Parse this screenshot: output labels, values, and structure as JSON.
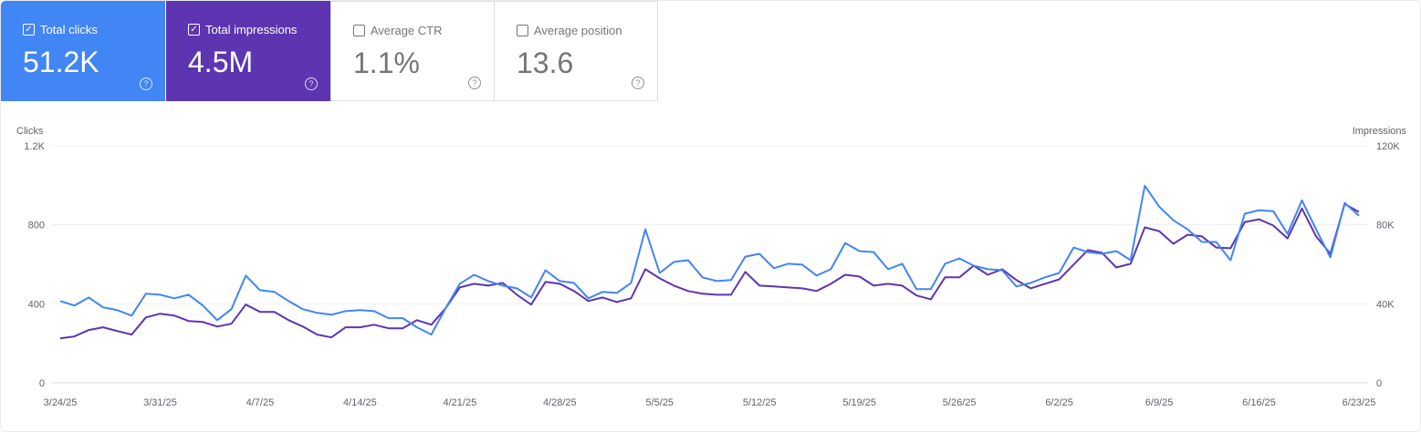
{
  "cards": [
    {
      "label": "Total clicks",
      "value": "51.2K",
      "checked": true,
      "color": "#4285f4"
    },
    {
      "label": "Total impressions",
      "value": "4.5M",
      "checked": true,
      "color": "#5e35b1"
    },
    {
      "label": "Average CTR",
      "value": "1.1%",
      "checked": false
    },
    {
      "label": "Average position",
      "value": "13.6",
      "checked": false
    }
  ],
  "chart_data": {
    "type": "line",
    "start_date": "2025-03-24",
    "end_date": "2025-06-23",
    "x_tick_labels": [
      "3/24/25",
      "3/31/25",
      "4/7/25",
      "4/14/25",
      "4/21/25",
      "4/28/25",
      "5/5/25",
      "5/12/25",
      "5/19/25",
      "5/26/25",
      "6/2/25",
      "6/9/25",
      "6/16/25",
      "6/23/25"
    ],
    "y_left": {
      "label": "Clicks",
      "ticks": [
        "0",
        "400",
        "800",
        "1.2K"
      ],
      "range": [
        0,
        1200
      ]
    },
    "y_right": {
      "label": "Impressions",
      "ticks": [
        "0",
        "40K",
        "80K",
        "120K"
      ],
      "range": [
        0,
        120000
      ]
    },
    "grid": true,
    "series": [
      {
        "name": "Clicks",
        "axis": "left",
        "color": "#4285f4",
        "values": [
          414,
          391,
          432,
          382,
          368,
          340,
          451,
          446,
          428,
          446,
          391,
          317,
          373,
          543,
          469,
          460,
          414,
          373,
          354,
          345,
          363,
          368,
          363,
          327,
          327,
          281,
          244,
          377,
          501,
          547,
          515,
          492,
          478,
          432,
          570,
          515,
          506,
          428,
          460,
          455,
          506,
          777,
          556,
          612,
          621,
          534,
          515,
          520,
          639,
          653,
          580,
          603,
          598,
          543,
          575,
          708,
          667,
          662,
          575,
          603,
          474,
          474,
          603,
          630,
          593,
          575,
          570,
          488,
          506,
          534,
          556,
          685,
          662,
          653,
          667,
          621,
          998,
          892,
          823,
          777,
          713,
          713,
          621,
          856,
          874,
          869,
          754,
          924,
          777,
          635,
          911,
          846
        ]
      },
      {
        "name": "Impressions",
        "axis": "right",
        "color": "#5e35b1",
        "values": [
          22500,
          23500,
          26700,
          28100,
          26200,
          24400,
          33100,
          35000,
          34000,
          31300,
          30800,
          28500,
          29900,
          39600,
          35900,
          35900,
          31700,
          28500,
          24400,
          23000,
          28100,
          28100,
          29400,
          27600,
          27600,
          31700,
          29400,
          37700,
          48300,
          50100,
          49200,
          50600,
          44600,
          39600,
          51100,
          50100,
          46500,
          41400,
          43200,
          40900,
          42800,
          57500,
          52900,
          49200,
          46500,
          45100,
          44600,
          44600,
          56100,
          49200,
          48800,
          48300,
          47800,
          46500,
          50100,
          54700,
          53800,
          49200,
          50100,
          49200,
          44200,
          42300,
          53400,
          53400,
          59300,
          54700,
          57500,
          52000,
          47800,
          50100,
          52400,
          59800,
          67200,
          65800,
          58400,
          60300,
          78700,
          76800,
          70400,
          75000,
          74100,
          68500,
          68100,
          81400,
          82800,
          79600,
          73100,
          88300,
          74100,
          65300,
          90600,
          86500
        ]
      }
    ]
  }
}
